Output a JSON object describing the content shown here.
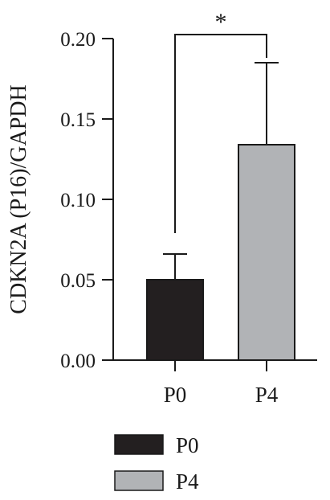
{
  "chart_data": {
    "type": "bar",
    "title": "",
    "xlabel": "",
    "ylabel": "CDKN2A (P16)/GAPDH",
    "ylim": [
      0,
      0.2
    ],
    "yticks": [
      "0.00",
      "0.05",
      "0.10",
      "0.15",
      "0.20"
    ],
    "ytick_values": [
      0,
      0.05,
      0.1,
      0.15,
      0.2
    ],
    "categories": [
      "P0",
      "P4"
    ],
    "values": [
      0.05,
      0.134
    ],
    "errors": [
      0.016,
      0.051
    ],
    "colors": [
      "#231f20",
      "#b1b3b6"
    ],
    "significance": {
      "from": 0,
      "to": 1,
      "label": "*"
    },
    "legend": {
      "placement": "bottom",
      "entries": [
        {
          "label": "P0",
          "color": "#231f20"
        },
        {
          "label": "P4",
          "color": "#b1b3b6"
        }
      ]
    },
    "grid": false
  }
}
